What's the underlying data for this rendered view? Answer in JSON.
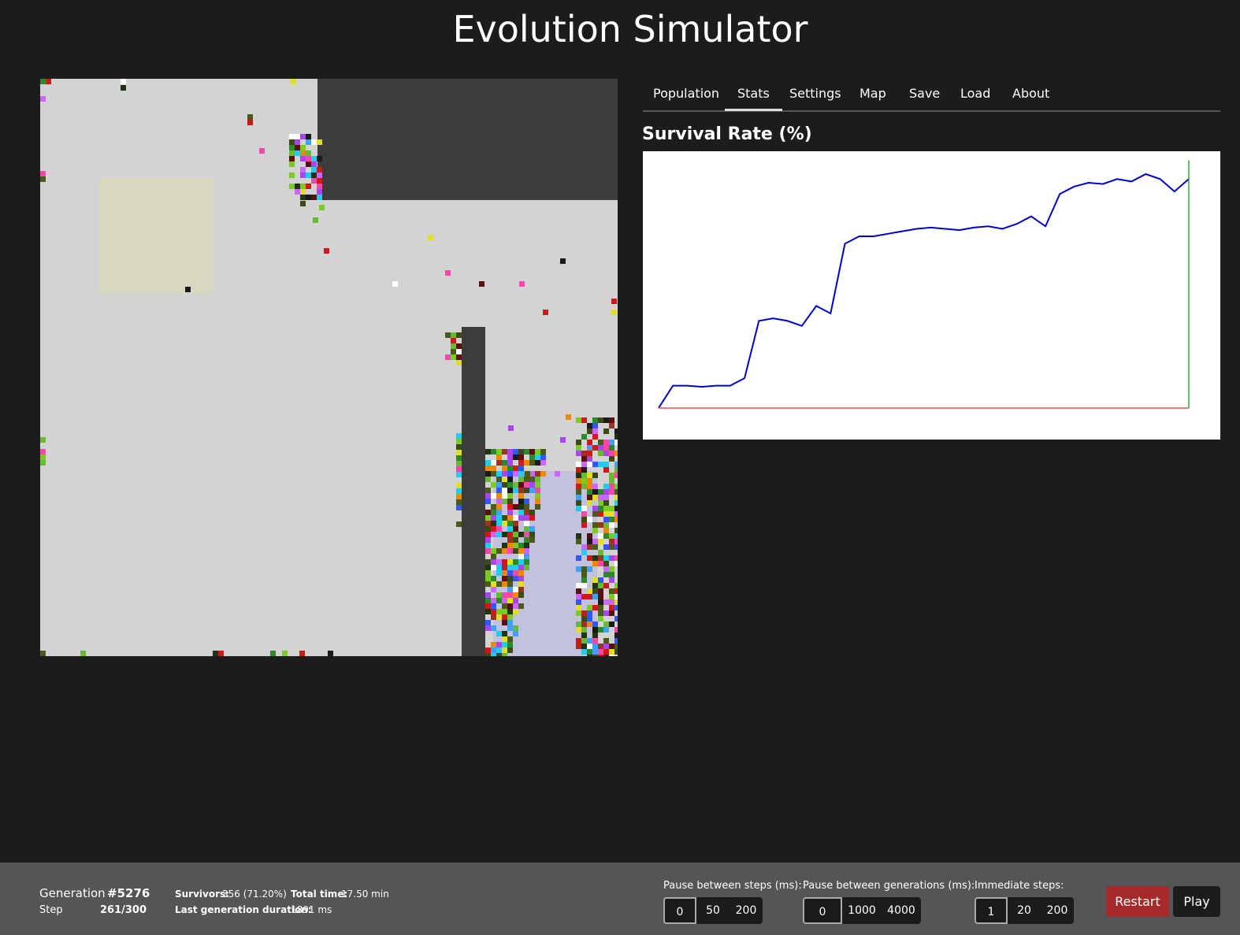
{
  "app": {
    "title": "Evolution Simulator"
  },
  "tabs": [
    "Population",
    "Stats",
    "Settings",
    "Map",
    "Save",
    "Load",
    "About"
  ],
  "active_tab": "Stats",
  "chart_title": "Survival Rate (%)",
  "chart_data": {
    "type": "line",
    "title": "Survival Rate (%)",
    "xlabel": "",
    "ylabel": "",
    "grid": false,
    "ylim": [
      0,
      100
    ],
    "series": [
      {
        "color": "#0000cc",
        "values": [
          0,
          9,
          9,
          8.5,
          9,
          9,
          12,
          35,
          36,
          35,
          33,
          41,
          38,
          66,
          69,
          69,
          70,
          71,
          72,
          72.5,
          72,
          71.5,
          72.5,
          73,
          72,
          74,
          77,
          73,
          86,
          89,
          90.5,
          90,
          92,
          91,
          94,
          92,
          87,
          92
        ]
      },
      {
        "color": "#e05050",
        "values": [
          0,
          0
        ]
      }
    ],
    "marker_color": "#33aa33"
  },
  "world_colors": {
    "background": "#d3d3d3",
    "wall": "#3c3c3c",
    "kill_zone": "#d8d8c0",
    "safe_zone": "#c2c2de"
  },
  "footer": {
    "generation_label": "Generation",
    "generation_value": "#5276",
    "step_label": "Step",
    "step_value": "261/300",
    "survivors_label": "Survivors:",
    "survivors_value": "356 (71.20%)",
    "total_time_label": "Total time:",
    "total_time_value": "17.50 min",
    "last_gen_label": "Last generation duration:",
    "last_gen_value": "1891 ms",
    "pause_steps_label": "Pause between steps (ms):",
    "pause_steps_options": [
      "0",
      "50",
      "200"
    ],
    "pause_steps_selected": 0,
    "pause_gen_label": "Pause between generations (ms):",
    "pause_gen_options": [
      "0",
      "1000",
      "4000"
    ],
    "pause_gen_selected": 0,
    "immediate_label": "Immediate steps:",
    "immediate_options": [
      "1",
      "20",
      "200"
    ],
    "immediate_selected": 0,
    "restart_label": "Restart",
    "play_label": "Play",
    "restart_color": "#a52a2a",
    "play_color": "#1c1c1c"
  }
}
